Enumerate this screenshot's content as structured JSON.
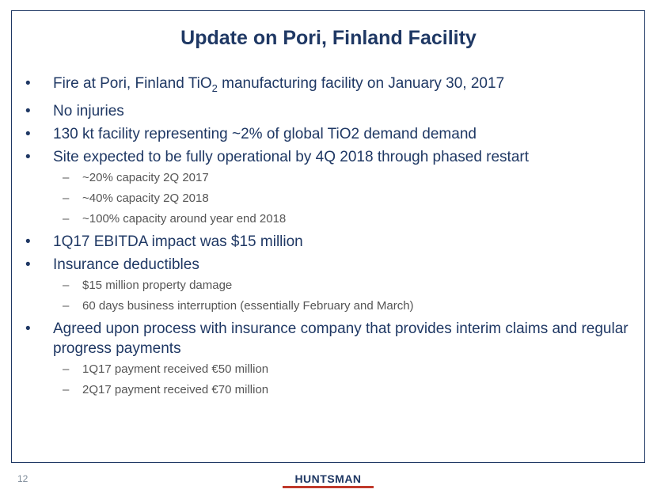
{
  "title": "Update on Pori, Finland Facility",
  "bullets": [
    {
      "text_pre": "Fire at Pori, Finland TiO",
      "sub": "2",
      "text_post": " manufacturing facility on January 30, 2017"
    },
    {
      "text": "No injuries"
    },
    {
      "text": "130 kt facility representing ~2% of global TiO2 demand demand"
    },
    {
      "text": "Site expected to be fully operational by 4Q 2018 through phased restart",
      "sub_items": [
        "~20% capacity 2Q 2017",
        "~40% capacity 2Q 2018",
        "~100% capacity around year end 2018"
      ]
    },
    {
      "text": "1Q17 EBITDA impact was $15 million"
    },
    {
      "text": "Insurance deductibles",
      "sub_items": [
        "$15 million property damage",
        "60 days business interruption (essentially February and March)"
      ]
    },
    {
      "text": "Agreed upon process with insurance company that provides interim claims and regular progress payments",
      "sub_items": [
        "1Q17 payment received €50 million",
        "2Q17 payment received €70 million"
      ]
    }
  ],
  "page_number": "12",
  "logo_text": "HUNTSMAN",
  "colors": {
    "title": "#1f3864",
    "text": "#1f3864",
    "subtext": "#555555",
    "logo_bar": "#c0392b"
  }
}
